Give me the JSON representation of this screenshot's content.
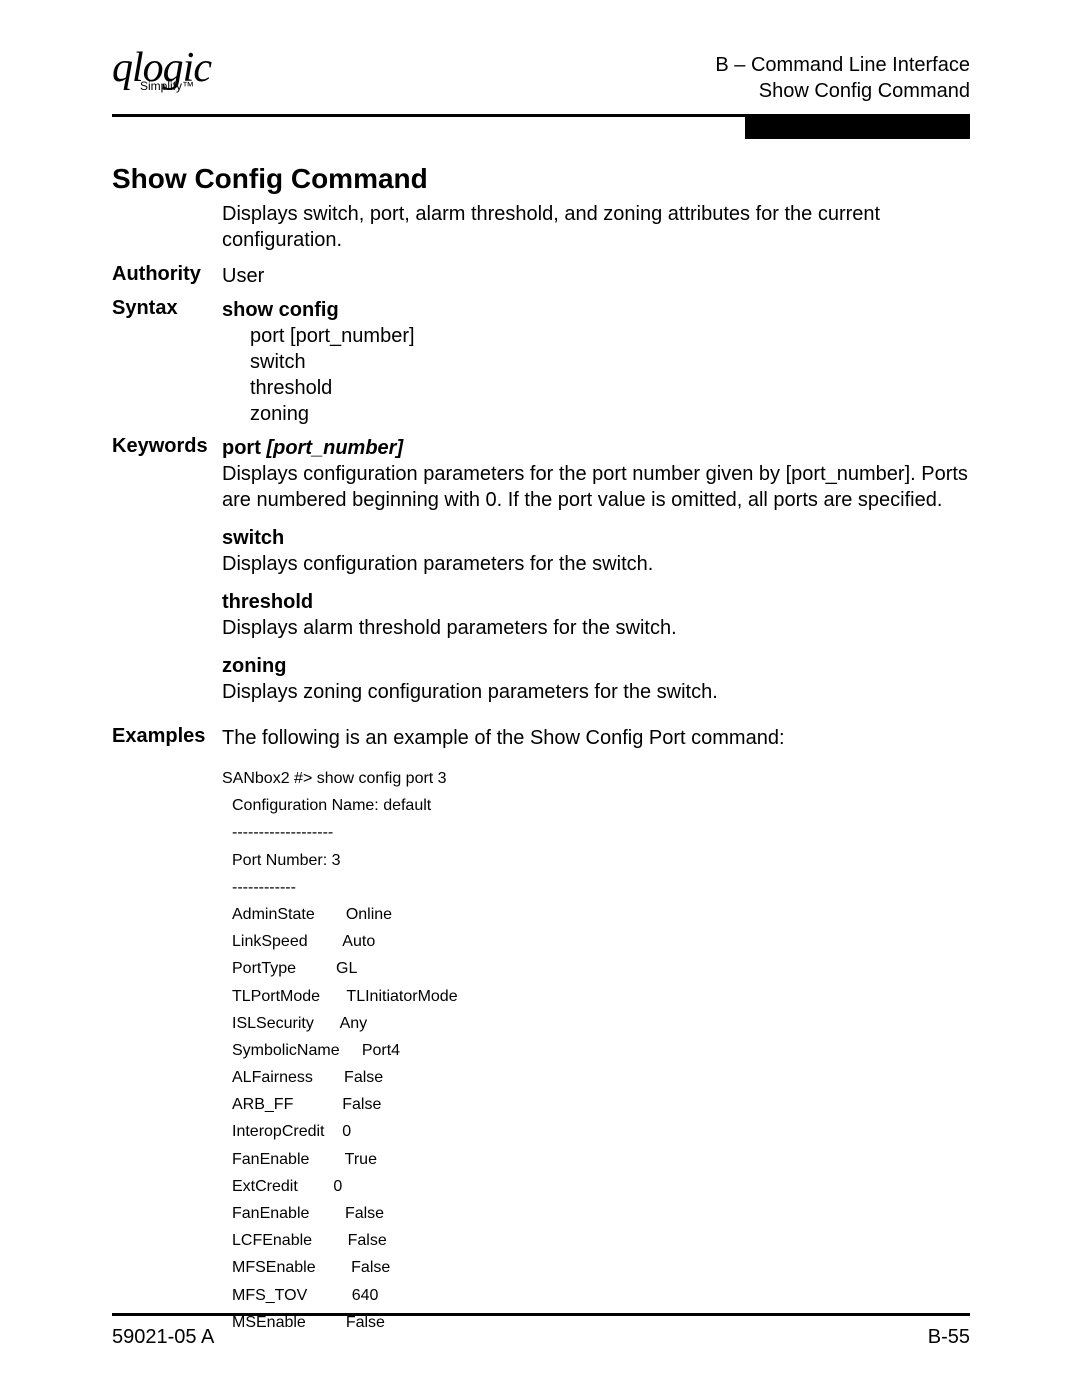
{
  "header": {
    "logo_main": "qlogic",
    "logo_sub": "Simplify™",
    "line1": "B – Command Line Interface",
    "line2": "Show Config Command"
  },
  "title": "Show Config Command",
  "intro": "Displays switch, port, alarm threshold, and zoning attributes for the current configuration.",
  "authority": {
    "label": "Authority",
    "value": "User"
  },
  "syntax": {
    "label": "Syntax",
    "command": "show config",
    "args": [
      "port [port_number]",
      "switch",
      "threshold",
      "zoning"
    ]
  },
  "keywords": {
    "label": "Keywords",
    "items": [
      {
        "name": "port",
        "param": "[port_number]",
        "desc": "Displays configuration parameters for the port number given by [port_number]. Ports are numbered beginning with 0. If the port value is omitted, all ports are specified."
      },
      {
        "name": "switch",
        "param": "",
        "desc": "Displays configuration parameters for the switch."
      },
      {
        "name": "threshold",
        "param": "",
        "desc": "Displays alarm threshold parameters for the switch."
      },
      {
        "name": "zoning",
        "param": "",
        "desc": "Displays zoning configuration parameters for the switch."
      }
    ]
  },
  "examples": {
    "label": "Examples",
    "intro": "The following is an example of the Show Config Port command:",
    "code": {
      "cmd": "SANbox2 #> show config port 3",
      "lines": [
        "Configuration Name: default",
        "-------------------",
        "Port Number: 3",
        "------------",
        "AdminState       Online",
        "LinkSpeed        Auto",
        "PortType         GL",
        "TLPortMode      TLInitiatorMode",
        "ISLSecurity      Any",
        "SymbolicName     Port4",
        "ALFairness       False",
        "ARB_FF           False",
        "InteropCredit    0",
        "FanEnable        True",
        "ExtCredit        0",
        "FanEnable        False",
        "LCFEnable        False",
        "MFSEnable        False",
        "MFS_TOV          640",
        "MSEnable         False"
      ]
    }
  },
  "footer": {
    "left": "59021-05  A",
    "right": "B-55"
  }
}
